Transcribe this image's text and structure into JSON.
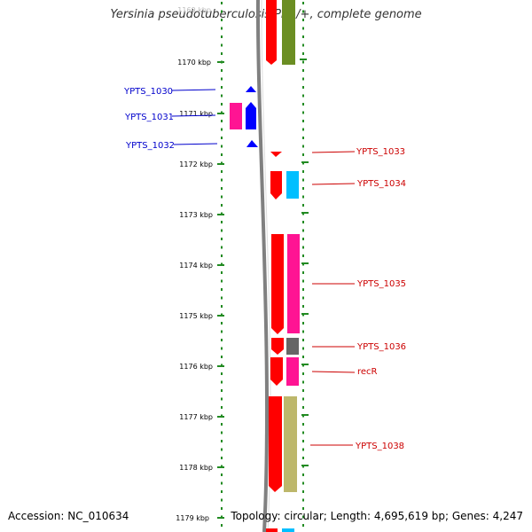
{
  "title": "Yersinia pseudotuberculosis PB1/+, complete genome",
  "footer": {
    "accession": "Accession: NC_010634",
    "summary": "Topology: circular; Length: 4,695,619 bp; Genes: 4,247"
  },
  "ruler": {
    "ticks": [
      {
        "label": "1170 kbp",
        "value": 1170
      },
      {
        "label": "1171 kbp",
        "value": 1171
      },
      {
        "label": "1172 kbp",
        "value": 1172
      },
      {
        "label": "1173 kbp",
        "value": 1173
      },
      {
        "label": "1174 kbp",
        "value": 1174
      },
      {
        "label": "1175 kbp",
        "value": 1175
      },
      {
        "label": "1176 kbp",
        "value": 1176
      },
      {
        "label": "1177 kbp",
        "value": 1177
      },
      {
        "label": "1178 kbp",
        "value": 1178
      },
      {
        "label": "1179 kbp",
        "value": 1179
      }
    ]
  },
  "genes_left": [
    {
      "label": "YPTS_1030",
      "color": "#0000cc"
    },
    {
      "label": "YPTS_1031",
      "color": "#0000cc"
    },
    {
      "label": "YPTS_1032",
      "color": "#0000cc"
    }
  ],
  "genes_right": [
    {
      "label": "YPTS_1033",
      "color": "#cc0000"
    },
    {
      "label": "YPTS_1034",
      "color": "#cc0000"
    },
    {
      "label": "YPTS_1035",
      "color": "#cc0000"
    },
    {
      "label": "YPTS_1036",
      "color": "#cc0000"
    },
    {
      "label": "recR",
      "color": "#cc0000"
    },
    {
      "label": "YPTS_1038",
      "color": "#cc0000"
    }
  ],
  "colors": {
    "forward_strand": "#ff0000",
    "reverse_strand": "#0000ff",
    "backbone": "#808080",
    "ruler_dots": "#228b22",
    "cog_magenta": "#ff1493",
    "cog_cyan": "#00bfff",
    "cog_olive": "#6b8e23",
    "cog_khaki": "#bdb76b",
    "cog_gray": "#666666"
  }
}
